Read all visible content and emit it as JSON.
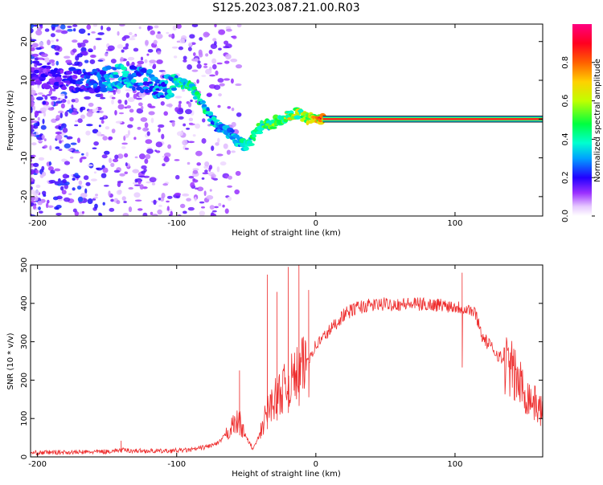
{
  "title": "S125.2023.087.21.00.R03",
  "chart_data": [
    {
      "type": "heatmap",
      "xlabel": "Height of straight line (km)",
      "ylabel": "Frequency (Hz)",
      "xlim": [
        -205,
        163
      ],
      "ylim": [
        -25,
        24.5
      ],
      "x_ticks": [
        -200,
        -100,
        0,
        100
      ],
      "y_ticks": [
        -20,
        -10,
        0,
        10,
        20
      ],
      "colorbar": {
        "label": "Normalized spectral amplitude",
        "range": [
          0,
          1
        ],
        "ticks": [
          0.0,
          0.2,
          0.4,
          0.6,
          0.8
        ],
        "colors": [
          "#ffffff",
          "#e6c8ff",
          "#9b30ff",
          "#4b00e0",
          "#0000ff",
          "#00e0ff",
          "#00ff40",
          "#c0ff00",
          "#ffff00",
          "#ff8000",
          "#ff0000",
          "#ff0080"
        ]
      },
      "ridge": {
        "x": [
          -205,
          -190,
          -175,
          -160,
          -150,
          -140,
          -130,
          -120,
          -110,
          -100,
          -95,
          -90,
          -85,
          -80,
          -75,
          -70,
          -65,
          -60,
          -55,
          -50,
          -45,
          -40,
          -35,
          -30,
          -25,
          -20,
          -15,
          -10,
          -5,
          0,
          5,
          163
        ],
        "freq": [
          12,
          11,
          10,
          10,
          10.5,
          11,
          10.5,
          9.5,
          8,
          9.5,
          9,
          8,
          6,
          3,
          0,
          -2,
          -3,
          -4,
          -6,
          -7,
          -5,
          -2,
          -1.5,
          -1,
          0,
          1,
          1.5,
          1,
          0,
          0,
          0,
          0
        ],
        "level": [
          0.15,
          0.18,
          0.2,
          0.25,
          0.3,
          0.35,
          0.3,
          0.3,
          0.3,
          0.4,
          0.45,
          0.45,
          0.4,
          0.4,
          0.35,
          0.35,
          0.35,
          0.35,
          0.4,
          0.4,
          0.45,
          0.45,
          0.5,
          0.5,
          0.55,
          0.6,
          0.6,
          0.6,
          0.65,
          0.7,
          0.9,
          0.95
        ]
      }
    },
    {
      "type": "line",
      "xlabel": "Height of straight line (km)",
      "ylabel": "SNR (10 * v/v)",
      "xlim": [
        -205,
        163
      ],
      "ylim": [
        0,
        500
      ],
      "x_ticks": [
        -200,
        -100,
        0,
        100
      ],
      "y_ticks": [
        0,
        100,
        200,
        300,
        400,
        500
      ],
      "color": "#ee2e2e",
      "x": [
        -205,
        -190,
        -170,
        -150,
        -140,
        -130,
        -110,
        -90,
        -80,
        -70,
        -60,
        -55,
        -50,
        -45,
        -40,
        -35,
        -30,
        -25,
        -20,
        -10,
        0,
        10,
        20,
        30,
        40,
        50,
        60,
        70,
        80,
        90,
        100,
        110,
        115,
        120,
        130,
        140,
        150,
        163
      ],
      "snr": [
        10,
        12,
        12,
        14,
        18,
        16,
        15,
        18,
        25,
        35,
        80,
        95,
        50,
        20,
        60,
        120,
        150,
        170,
        190,
        230,
        290,
        330,
        370,
        390,
        395,
        398,
        398,
        398,
        397,
        396,
        392,
        385,
        372,
        310,
        270,
        230,
        170,
        115
      ],
      "spikes": [
        {
          "x": -140,
          "snr": 42
        },
        {
          "x": -55,
          "snr": 225
        },
        {
          "x": -35,
          "snr": 475
        },
        {
          "x": -28,
          "snr": 430
        },
        {
          "x": -20,
          "snr": 495
        },
        {
          "x": -12,
          "snr": 500
        },
        {
          "x": -5,
          "snr": 435
        },
        {
          "x": 105,
          "snr": 480
        }
      ]
    }
  ]
}
